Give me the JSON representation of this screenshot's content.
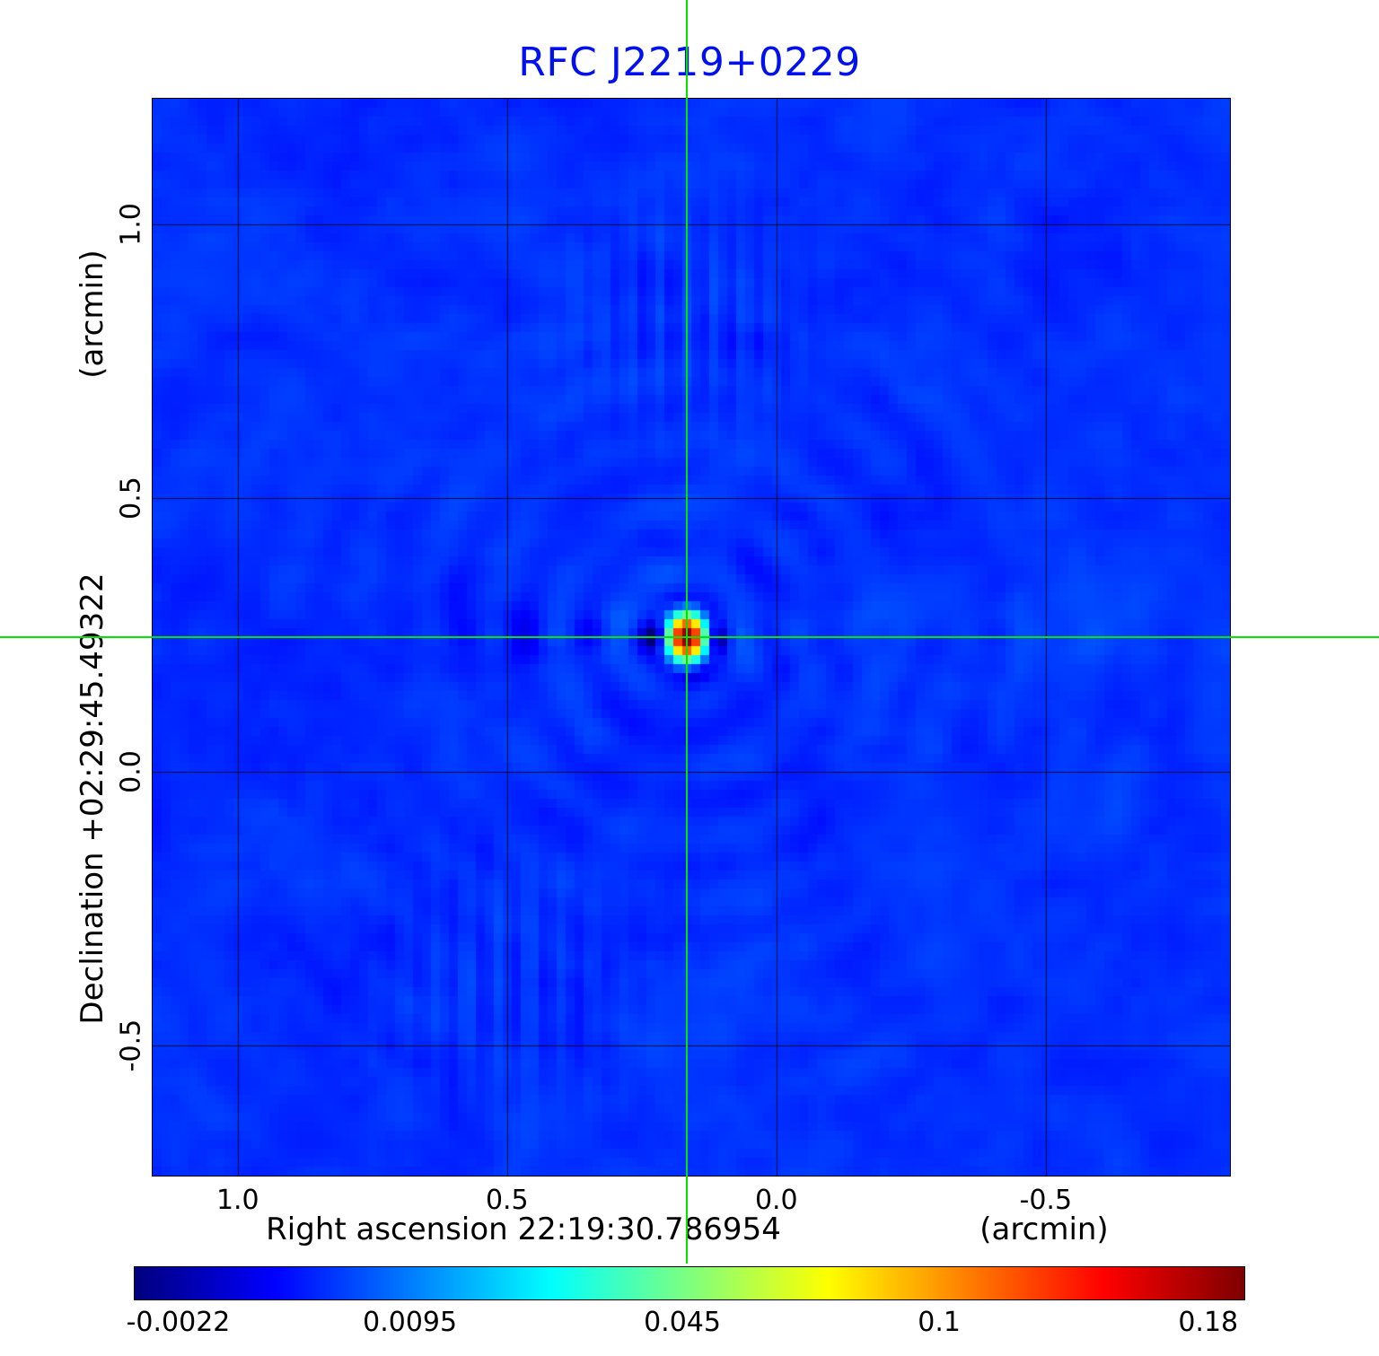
{
  "chart_data": {
    "type": "heatmap",
    "title": "RFC J2219+0229",
    "title_color": "#0010ee",
    "x_axis": {
      "label": "Right ascension  22:19:30.786954",
      "unit": "(arcmin)",
      "ticks": [
        1.0,
        0.5,
        0.0,
        -0.5
      ],
      "tick_labels": [
        "1.0",
        "0.5",
        "0.0",
        "-0.5"
      ],
      "range": [
        1.158,
        -0.842
      ]
    },
    "y_axis": {
      "label": "Declination  +02:29:45.49322",
      "unit": "(arcmin)",
      "ticks": [
        1.0,
        0.5,
        0.0,
        -0.5
      ],
      "tick_labels": [
        "1.0",
        "0.5",
        "0.0",
        "-0.5"
      ],
      "range": [
        -0.738,
        1.23
      ]
    },
    "colorbar": {
      "colormap": "jet",
      "scale": "sqrt",
      "vmin": -0.0025,
      "vmax": 0.1925,
      "ticks": [
        -0.0022,
        0.0095,
        0.045,
        0.1,
        0.18
      ],
      "tick_labels": [
        "-0.0022",
        "0.0095",
        "0.045",
        "0.1",
        "0.18"
      ]
    },
    "peak": {
      "value": 0.19,
      "x_frac": 0.496,
      "y_frac": 0.5,
      "ra_offset_arcmin": 0.167,
      "dec_offset_arcmin": 0.246
    },
    "background_value": 0.0032,
    "crosshair_color": "#00e400",
    "grid": true,
    "legend_position": "none"
  }
}
